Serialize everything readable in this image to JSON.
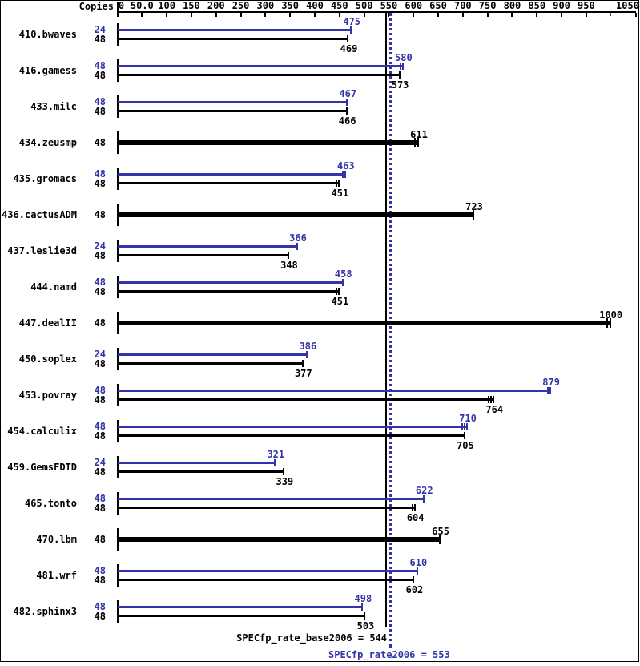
{
  "header": {
    "copies_label": "Copies"
  },
  "footer": {
    "base_label": "SPECfp_rate_base2006 = 544",
    "peak_label": "SPECfp_rate2006 = 553"
  },
  "colors": {
    "accent_blue": "#3333aa",
    "black": "#000000",
    "background": "#ffffff"
  },
  "chart_data": {
    "type": "bar",
    "orientation": "horizontal",
    "title": "SPECfp_rate2006 result chart",
    "axis": {
      "min": 0,
      "max": 1050,
      "tick_interval": 50,
      "position": "top",
      "ticks": [
        {
          "value": 0,
          "label": "0"
        },
        {
          "value": 50,
          "label": "50.0"
        },
        {
          "value": 100,
          "label": "100"
        },
        {
          "value": 150,
          "label": "150"
        },
        {
          "value": 200,
          "label": "200"
        },
        {
          "value": 250,
          "label": "250"
        },
        {
          "value": 300,
          "label": "300"
        },
        {
          "value": 350,
          "label": "350"
        },
        {
          "value": 400,
          "label": "400"
        },
        {
          "value": 450,
          "label": "450"
        },
        {
          "value": 500,
          "label": "500"
        },
        {
          "value": 550,
          "label": "550"
        },
        {
          "value": 600,
          "label": "600"
        },
        {
          "value": 650,
          "label": "650"
        },
        {
          "value": 700,
          "label": "700"
        },
        {
          "value": 750,
          "label": "750"
        },
        {
          "value": 800,
          "label": "800"
        },
        {
          "value": 850,
          "label": "850"
        },
        {
          "value": 900,
          "label": "900"
        },
        {
          "value": 950,
          "label": "950"
        },
        {
          "value": 1000,
          "label": ""
        },
        {
          "value": 1050,
          "label": "1050"
        }
      ]
    },
    "series_legend": {
      "peak": {
        "name": "SPECfp_rate2006",
        "color": "#3333aa"
      },
      "base": {
        "name": "SPECfp_rate_base2006",
        "color": "#000000"
      }
    },
    "reference_lines": [
      {
        "name": "SPECfp_rate_base2006",
        "value": 544,
        "style": "solid",
        "color": "#000000"
      },
      {
        "name": "SPECfp_rate2006",
        "value": 553,
        "style": "dotted",
        "color": "#3333aa"
      }
    ],
    "benchmarks": [
      {
        "name": "410.bwaves",
        "bars": [
          {
            "series": "peak",
            "copies": "24",
            "value": 475,
            "end_ticks": 1
          },
          {
            "series": "base",
            "copies": "48",
            "value": 469,
            "end_ticks": 1
          }
        ]
      },
      {
        "name": "416.gamess",
        "bars": [
          {
            "series": "peak",
            "copies": "48",
            "value": 580,
            "end_ticks": 2
          },
          {
            "series": "base",
            "copies": "48",
            "value": 573,
            "end_ticks": 1
          }
        ]
      },
      {
        "name": "433.milc",
        "bars": [
          {
            "series": "peak",
            "copies": "48",
            "value": 467,
            "end_ticks": 1
          },
          {
            "series": "base",
            "copies": "48",
            "value": 466,
            "end_ticks": 1
          }
        ]
      },
      {
        "name": "434.zeusmp",
        "bars": [
          {
            "series": "base",
            "copies": "48",
            "value": 611,
            "thick": true,
            "end_ticks": 2
          }
        ]
      },
      {
        "name": "435.gromacs",
        "bars": [
          {
            "series": "peak",
            "copies": "48",
            "value": 463,
            "end_ticks": 2
          },
          {
            "series": "base",
            "copies": "48",
            "value": 451,
            "end_ticks": 2
          }
        ]
      },
      {
        "name": "436.cactusADM",
        "bars": [
          {
            "series": "base",
            "copies": "48",
            "value": 723,
            "thick": true,
            "end_ticks": 1
          }
        ]
      },
      {
        "name": "437.leslie3d",
        "bars": [
          {
            "series": "peak",
            "copies": "24",
            "value": 366,
            "end_ticks": 1
          },
          {
            "series": "base",
            "copies": "48",
            "value": 348,
            "end_ticks": 1
          }
        ]
      },
      {
        "name": "444.namd",
        "bars": [
          {
            "series": "peak",
            "copies": "48",
            "value": 458,
            "end_ticks": 1
          },
          {
            "series": "base",
            "copies": "48",
            "value": 451,
            "end_ticks": 2
          }
        ]
      },
      {
        "name": "447.dealII",
        "bars": [
          {
            "series": "base",
            "copies": "48",
            "value": 1000,
            "thick": true,
            "end_ticks": 2
          }
        ]
      },
      {
        "name": "450.soplex",
        "bars": [
          {
            "series": "peak",
            "copies": "24",
            "value": 386,
            "end_ticks": 1
          },
          {
            "series": "base",
            "copies": "48",
            "value": 377,
            "end_ticks": 1
          }
        ]
      },
      {
        "name": "453.povray",
        "bars": [
          {
            "series": "peak",
            "copies": "48",
            "value": 879,
            "end_ticks": 2
          },
          {
            "series": "base",
            "copies": "48",
            "value": 764,
            "end_ticks": 3
          }
        ]
      },
      {
        "name": "454.calculix",
        "bars": [
          {
            "series": "peak",
            "copies": "48",
            "value": 710,
            "end_ticks": 3
          },
          {
            "series": "base",
            "copies": "48",
            "value": 705,
            "end_ticks": 1
          }
        ]
      },
      {
        "name": "459.GemsFDTD",
        "bars": [
          {
            "series": "peak",
            "copies": "24",
            "value": 321,
            "end_ticks": 1
          },
          {
            "series": "base",
            "copies": "48",
            "value": 339,
            "end_ticks": 1
          }
        ]
      },
      {
        "name": "465.tonto",
        "bars": [
          {
            "series": "peak",
            "copies": "48",
            "value": 622,
            "end_ticks": 1
          },
          {
            "series": "base",
            "copies": "48",
            "value": 604,
            "end_ticks": 2
          }
        ]
      },
      {
        "name": "470.lbm",
        "bars": [
          {
            "series": "base",
            "copies": "48",
            "value": 655,
            "thick": true,
            "end_ticks": 1
          }
        ]
      },
      {
        "name": "481.wrf",
        "bars": [
          {
            "series": "peak",
            "copies": "48",
            "value": 610,
            "end_ticks": 1
          },
          {
            "series": "base",
            "copies": "48",
            "value": 602,
            "end_ticks": 1
          }
        ]
      },
      {
        "name": "482.sphinx3",
        "bars": [
          {
            "series": "peak",
            "copies": "48",
            "value": 498,
            "end_ticks": 1
          },
          {
            "series": "base",
            "copies": "48",
            "value": 503,
            "end_ticks": 1
          }
        ]
      }
    ]
  }
}
